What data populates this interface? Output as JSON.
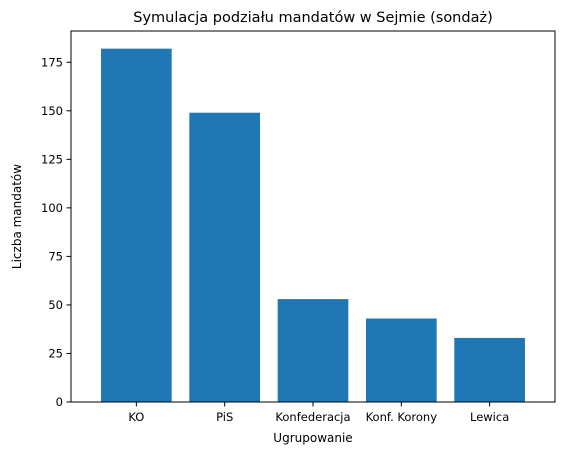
{
  "chart_data": {
    "type": "bar",
    "title": "Symulacja podziału mandatów w Sejmie (sondaż)",
    "xlabel": "Ugrupowanie",
    "ylabel": "Liczba mandatów",
    "categories": [
      "KO",
      "PiS",
      "Konfederacja",
      "Konf. Korony",
      "Lewica"
    ],
    "values": [
      182,
      149,
      53,
      43,
      33
    ],
    "ylim": [
      0,
      191.1
    ],
    "yticks": [
      0,
      25,
      50,
      75,
      100,
      125,
      150,
      175
    ],
    "grid": false,
    "legend": "none",
    "bar_color": "#1f77b4"
  }
}
